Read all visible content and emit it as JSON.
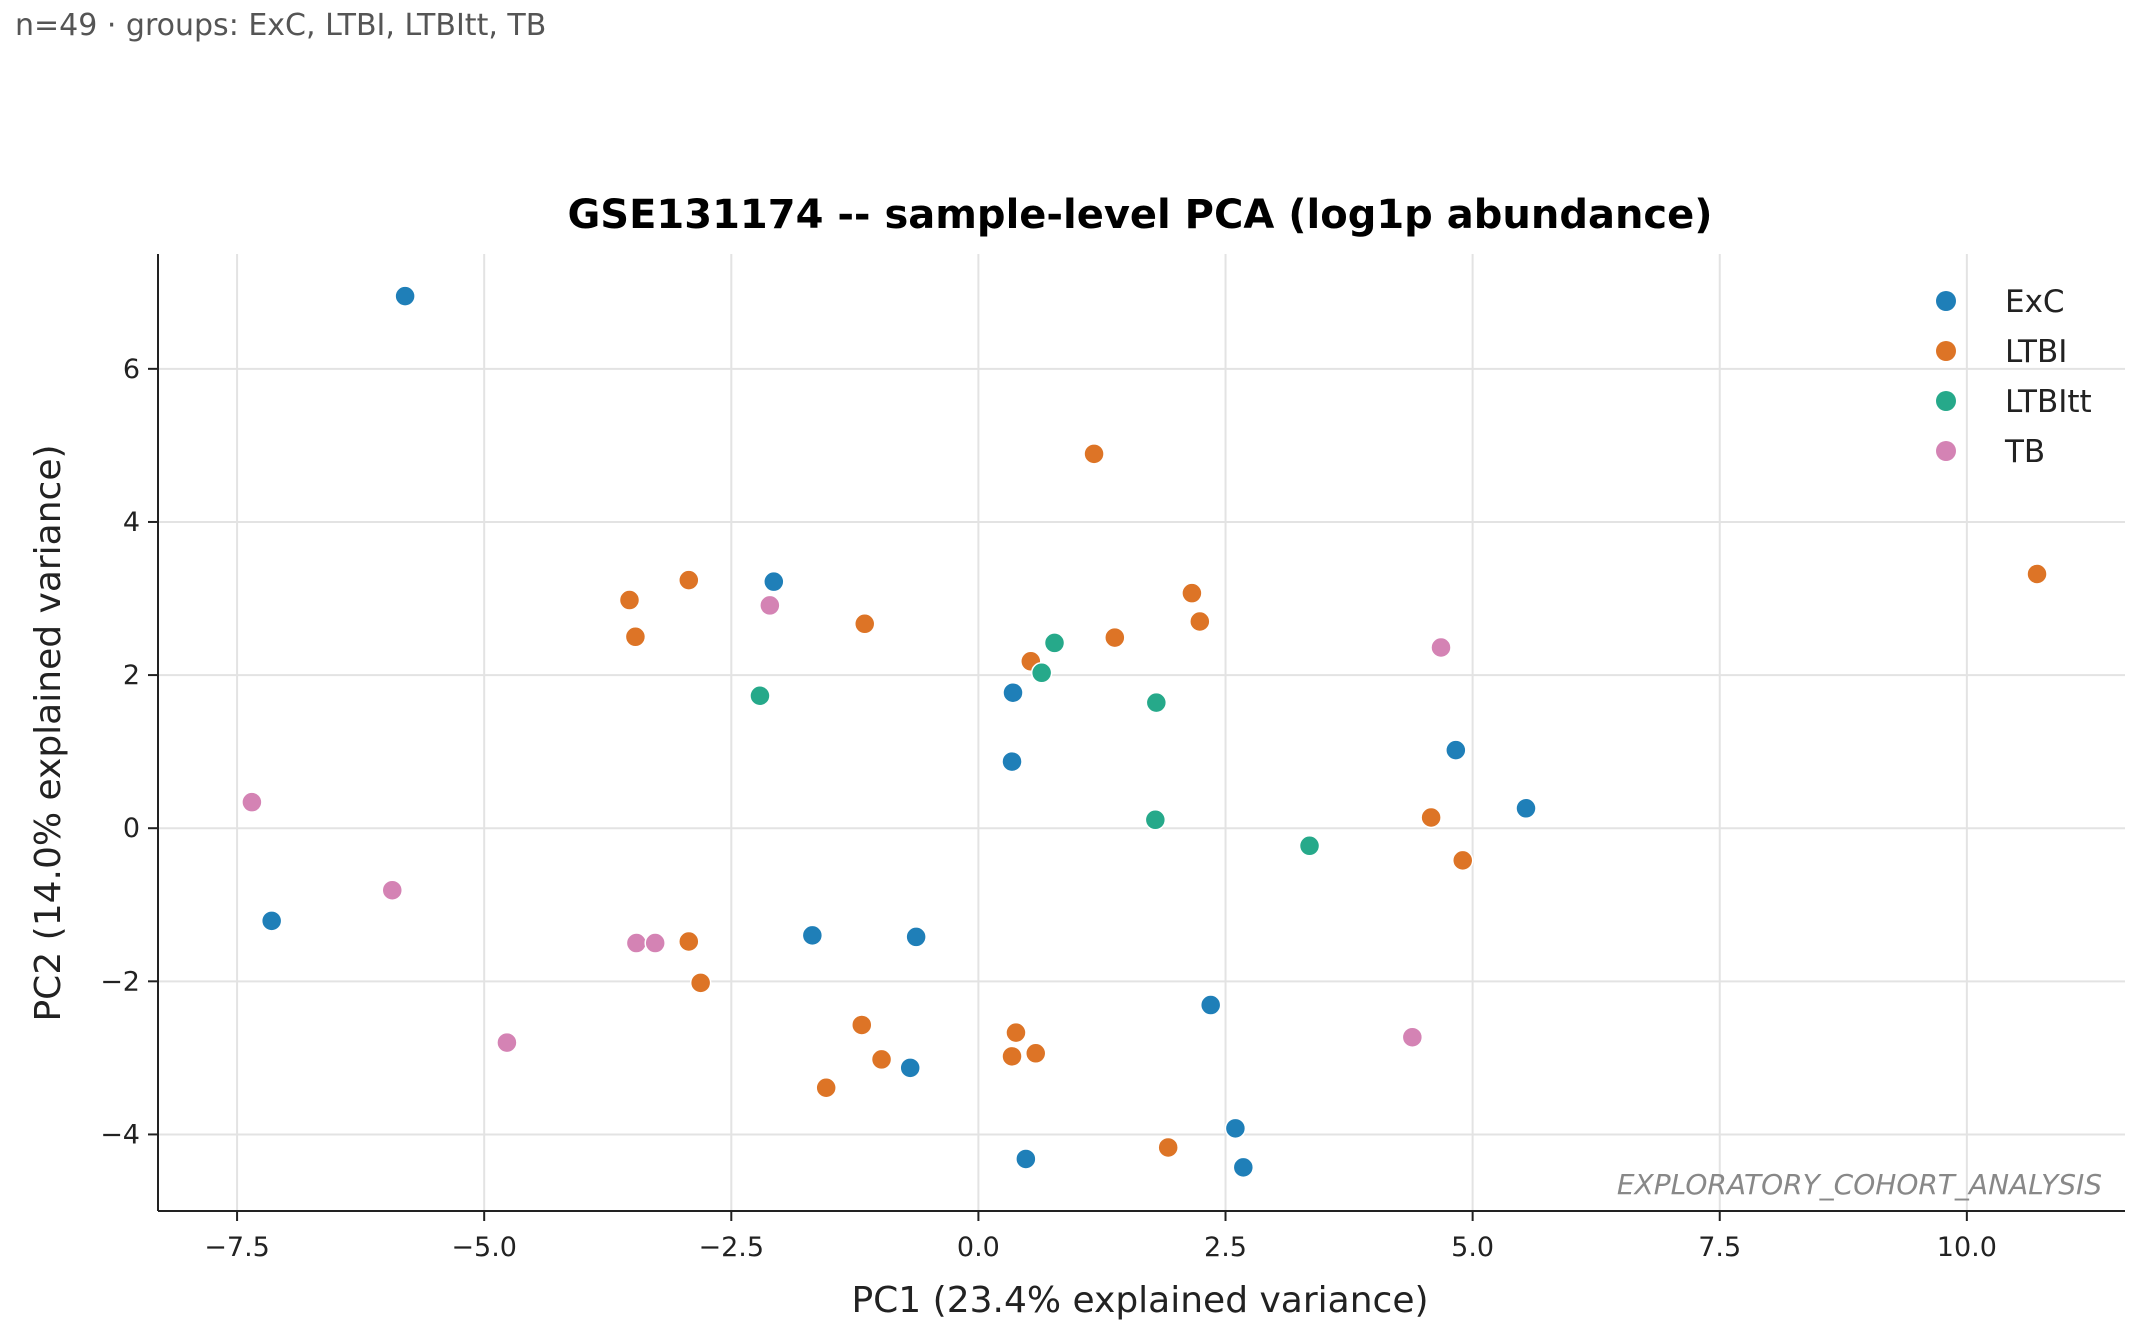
{
  "header": {
    "subtitle": "n=49 · groups: ExC, LTBI, LTBItt, TB"
  },
  "chart_data": {
    "type": "scatter",
    "title": "GSE131174 -- sample-level PCA (log1p abundance)",
    "xlabel": "PC1 (23.4% explained variance)",
    "ylabel": "PC2 (14.0% explained variance)",
    "xlim": [
      -8.3,
      11.6
    ],
    "ylim": [
      -5.0,
      7.5
    ],
    "xticks": [
      -7.5,
      -5.0,
      -2.5,
      0.0,
      2.5,
      5.0,
      7.5,
      10.0
    ],
    "xtick_labels": [
      "−7.5",
      "−5.0",
      "−2.5",
      "0.0",
      "2.5",
      "5.0",
      "7.5",
      "10.0"
    ],
    "yticks": [
      -4,
      -2,
      0,
      2,
      4,
      6
    ],
    "ytick_labels": [
      "−4",
      "−2",
      "0",
      "2",
      "4",
      "6"
    ],
    "grid": true,
    "legend_position": "top-right",
    "watermark": "EXPLORATORY_COHORT_ANALYSIS",
    "series": [
      {
        "name": "ExC",
        "color": "#1f7fb8",
        "points": [
          [
            -5.8,
            6.95
          ],
          [
            -2.07,
            3.22
          ],
          [
            0.35,
            1.77
          ],
          [
            0.34,
            0.87
          ],
          [
            4.83,
            1.02
          ],
          [
            5.54,
            0.26
          ],
          [
            -7.15,
            -1.21
          ],
          [
            -1.68,
            -1.4
          ],
          [
            -0.63,
            -1.42
          ],
          [
            2.35,
            -2.31
          ],
          [
            -0.69,
            -3.13
          ],
          [
            2.6,
            -3.92
          ],
          [
            0.48,
            -4.32
          ],
          [
            2.68,
            -4.43
          ]
        ]
      },
      {
        "name": "LTBI",
        "color": "#dd7426",
        "points": [
          [
            1.17,
            4.89
          ],
          [
            -3.53,
            2.98
          ],
          [
            -2.93,
            3.24
          ],
          [
            -3.47,
            2.5
          ],
          [
            -1.15,
            2.67
          ],
          [
            2.16,
            3.07
          ],
          [
            2.24,
            2.7
          ],
          [
            1.38,
            2.49
          ],
          [
            0.53,
            2.18
          ],
          [
            10.71,
            3.32
          ],
          [
            4.58,
            0.14
          ],
          [
            4.9,
            -0.42
          ],
          [
            -2.93,
            -1.48
          ],
          [
            -2.81,
            -2.02
          ],
          [
            -1.18,
            -2.57
          ],
          [
            -0.98,
            -3.02
          ],
          [
            -1.54,
            -3.39
          ],
          [
            0.38,
            -2.67
          ],
          [
            0.34,
            -2.98
          ],
          [
            0.58,
            -2.94
          ],
          [
            1.92,
            -4.17
          ]
        ]
      },
      {
        "name": "LTBItt",
        "color": "#26a98a",
        "points": [
          [
            0.77,
            2.42
          ],
          [
            0.64,
            2.03
          ],
          [
            -2.21,
            1.73
          ],
          [
            1.8,
            1.64
          ],
          [
            1.79,
            0.11
          ],
          [
            3.35,
            -0.23
          ]
        ]
      },
      {
        "name": "TB",
        "color": "#d483b4",
        "points": [
          [
            -2.11,
            2.91
          ],
          [
            4.68,
            2.36
          ],
          [
            -7.35,
            0.34
          ],
          [
            -5.93,
            -0.81
          ],
          [
            -3.46,
            -1.5
          ],
          [
            -3.27,
            -1.5
          ],
          [
            -4.77,
            -2.8
          ],
          [
            4.39,
            -2.73
          ]
        ]
      }
    ]
  }
}
